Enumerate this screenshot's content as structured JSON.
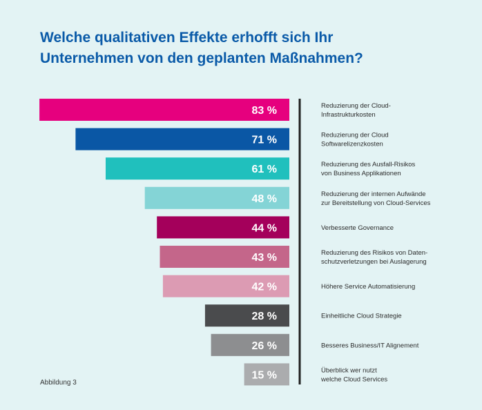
{
  "title_line1": "Welche qualitativen Effekte erhofft sich Ihr",
  "title_line2": "Unternehmen von den geplanten Maßnahmen?",
  "caption": "Abbildung 3",
  "chart_data": {
    "type": "bar",
    "orientation": "horizontal",
    "title": "Welche qualitativen Effekte erhofft sich Ihr Unternehmen von den geplanten Maßnahmen?",
    "unit": "%",
    "xlim": [
      0,
      100
    ],
    "categories": [
      [
        "Reduzierung der Cloud-",
        "Infrastrukturkosten"
      ],
      [
        "Reduzierung der Cloud",
        "Softwarelizenzkosten"
      ],
      [
        "Reduzierung des Ausfall-Risikos",
        "von Business Applikationen"
      ],
      [
        "Reduzierung der internen Aufwände",
        "zur Bereitstellung von Cloud-Services"
      ],
      [
        "Verbesserte Governance"
      ],
      [
        "Reduzierung des Risikos von Daten-",
        "schutzverletzungen bei Auslagerung"
      ],
      [
        "Höhere Service Automatisierung"
      ],
      [
        "Einheitliche Cloud Strategie"
      ],
      [
        "Besseres Business/IT Alignement"
      ],
      [
        "Überblick wer nutzt",
        "welche Cloud Services"
      ]
    ],
    "values": [
      83,
      71,
      61,
      48,
      44,
      43,
      42,
      28,
      26,
      15
    ],
    "value_labels": [
      "83 %",
      "71 %",
      "61 %",
      "48 %",
      "44 %",
      "43 %",
      "42 %",
      "28 %",
      "26 %",
      "15 %"
    ],
    "colors": [
      "#e6007e",
      "#0a57a5",
      "#20c0bd",
      "#84d4d6",
      "#a4005b",
      "#c4668a",
      "#dc9bb3",
      "#4a4b4d",
      "#8d8e90",
      "#abacae"
    ]
  }
}
